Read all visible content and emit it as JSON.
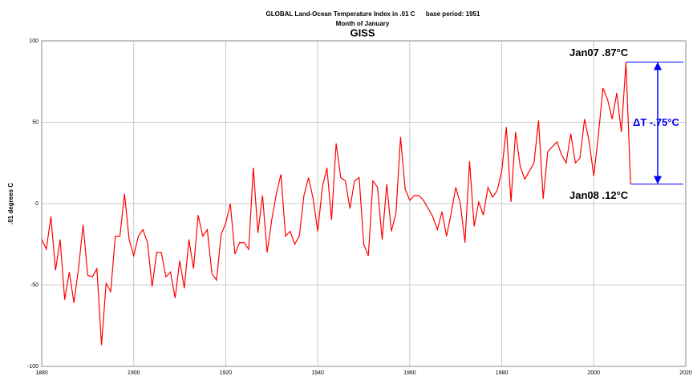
{
  "chart_data": {
    "type": "line",
    "title": "GLOBAL Land-Ocean Temperature Index in .01 C      base period: 1951",
    "subtitle": "Month of January",
    "source": "GISS",
    "ylabel": ".01 degrees C",
    "annotations": [
      "Jan07 .87°C",
      "Jan08 .12°C",
      "ΔT -.75°C"
    ],
    "annotation_color": "#0000ff",
    "x": [
      1880,
      1881,
      1882,
      1883,
      1884,
      1885,
      1886,
      1887,
      1888,
      1889,
      1890,
      1891,
      1892,
      1893,
      1894,
      1895,
      1896,
      1897,
      1898,
      1899,
      1900,
      1901,
      1902,
      1903,
      1904,
      1905,
      1906,
      1907,
      1908,
      1909,
      1910,
      1911,
      1912,
      1913,
      1914,
      1915,
      1916,
      1917,
      1918,
      1919,
      1920,
      1921,
      1922,
      1923,
      1924,
      1925,
      1926,
      1927,
      1928,
      1929,
      1930,
      1931,
      1932,
      1933,
      1934,
      1935,
      1936,
      1937,
      1938,
      1939,
      1940,
      1941,
      1942,
      1943,
      1944,
      1945,
      1946,
      1947,
      1948,
      1949,
      1950,
      1951,
      1952,
      1953,
      1954,
      1955,
      1956,
      1957,
      1958,
      1959,
      1960,
      1961,
      1962,
      1963,
      1964,
      1965,
      1966,
      1967,
      1968,
      1969,
      1970,
      1971,
      1972,
      1973,
      1974,
      1975,
      1976,
      1977,
      1978,
      1979,
      1980,
      1981,
      1982,
      1983,
      1984,
      1985,
      1986,
      1987,
      1988,
      1989,
      1990,
      1991,
      1992,
      1993,
      1994,
      1995,
      1996,
      1997,
      1998,
      1999,
      2000,
      2001,
      2002,
      2003,
      2004,
      2005,
      2006,
      2007,
      2008
    ],
    "series": [
      {
        "name": "GISS January",
        "color": "#ff0000",
        "values": [
          -22,
          -28,
          -8,
          -41,
          -22,
          -59,
          -42,
          -61,
          -40,
          -13,
          -44,
          -45,
          -40,
          -87,
          -49,
          -54,
          -20,
          -20,
          6,
          -22,
          -32,
          -20,
          -16,
          -24,
          -51,
          -30,
          -30,
          -45,
          -42,
          -58,
          -35,
          -52,
          -22,
          -40,
          -7,
          -20,
          -16,
          -43,
          -47,
          -19,
          -12,
          0,
          -31,
          -24,
          -24,
          -28,
          22,
          -18,
          5,
          -30,
          -10,
          6,
          18,
          -20,
          -17,
          -25,
          -20,
          5,
          16,
          3,
          -17,
          10,
          22,
          -10,
          37,
          16,
          14,
          -3,
          14,
          16,
          -25,
          -32,
          14,
          10,
          -22,
          12,
          -17,
          -6,
          41,
          9,
          2,
          5,
          5,
          2,
          -3,
          -8,
          -16,
          -5,
          -20,
          -6,
          10,
          0,
          -24,
          26,
          -14,
          1,
          -7,
          10,
          4,
          8,
          20,
          47,
          1,
          44,
          23,
          15,
          20,
          25,
          51,
          3,
          32,
          35,
          38,
          30,
          25,
          43,
          25,
          28,
          52,
          38,
          17,
          42,
          71,
          64,
          52,
          68,
          44,
          87,
          12
        ]
      }
    ],
    "xlim": [
      1880,
      2020
    ],
    "xticks": [
      1880,
      1900,
      1920,
      1940,
      1960,
      1980,
      2000,
      2020
    ],
    "ylim": [
      -100,
      100
    ],
    "yticks": [
      -100,
      -50,
      0,
      50,
      100
    ],
    "grid": true
  }
}
